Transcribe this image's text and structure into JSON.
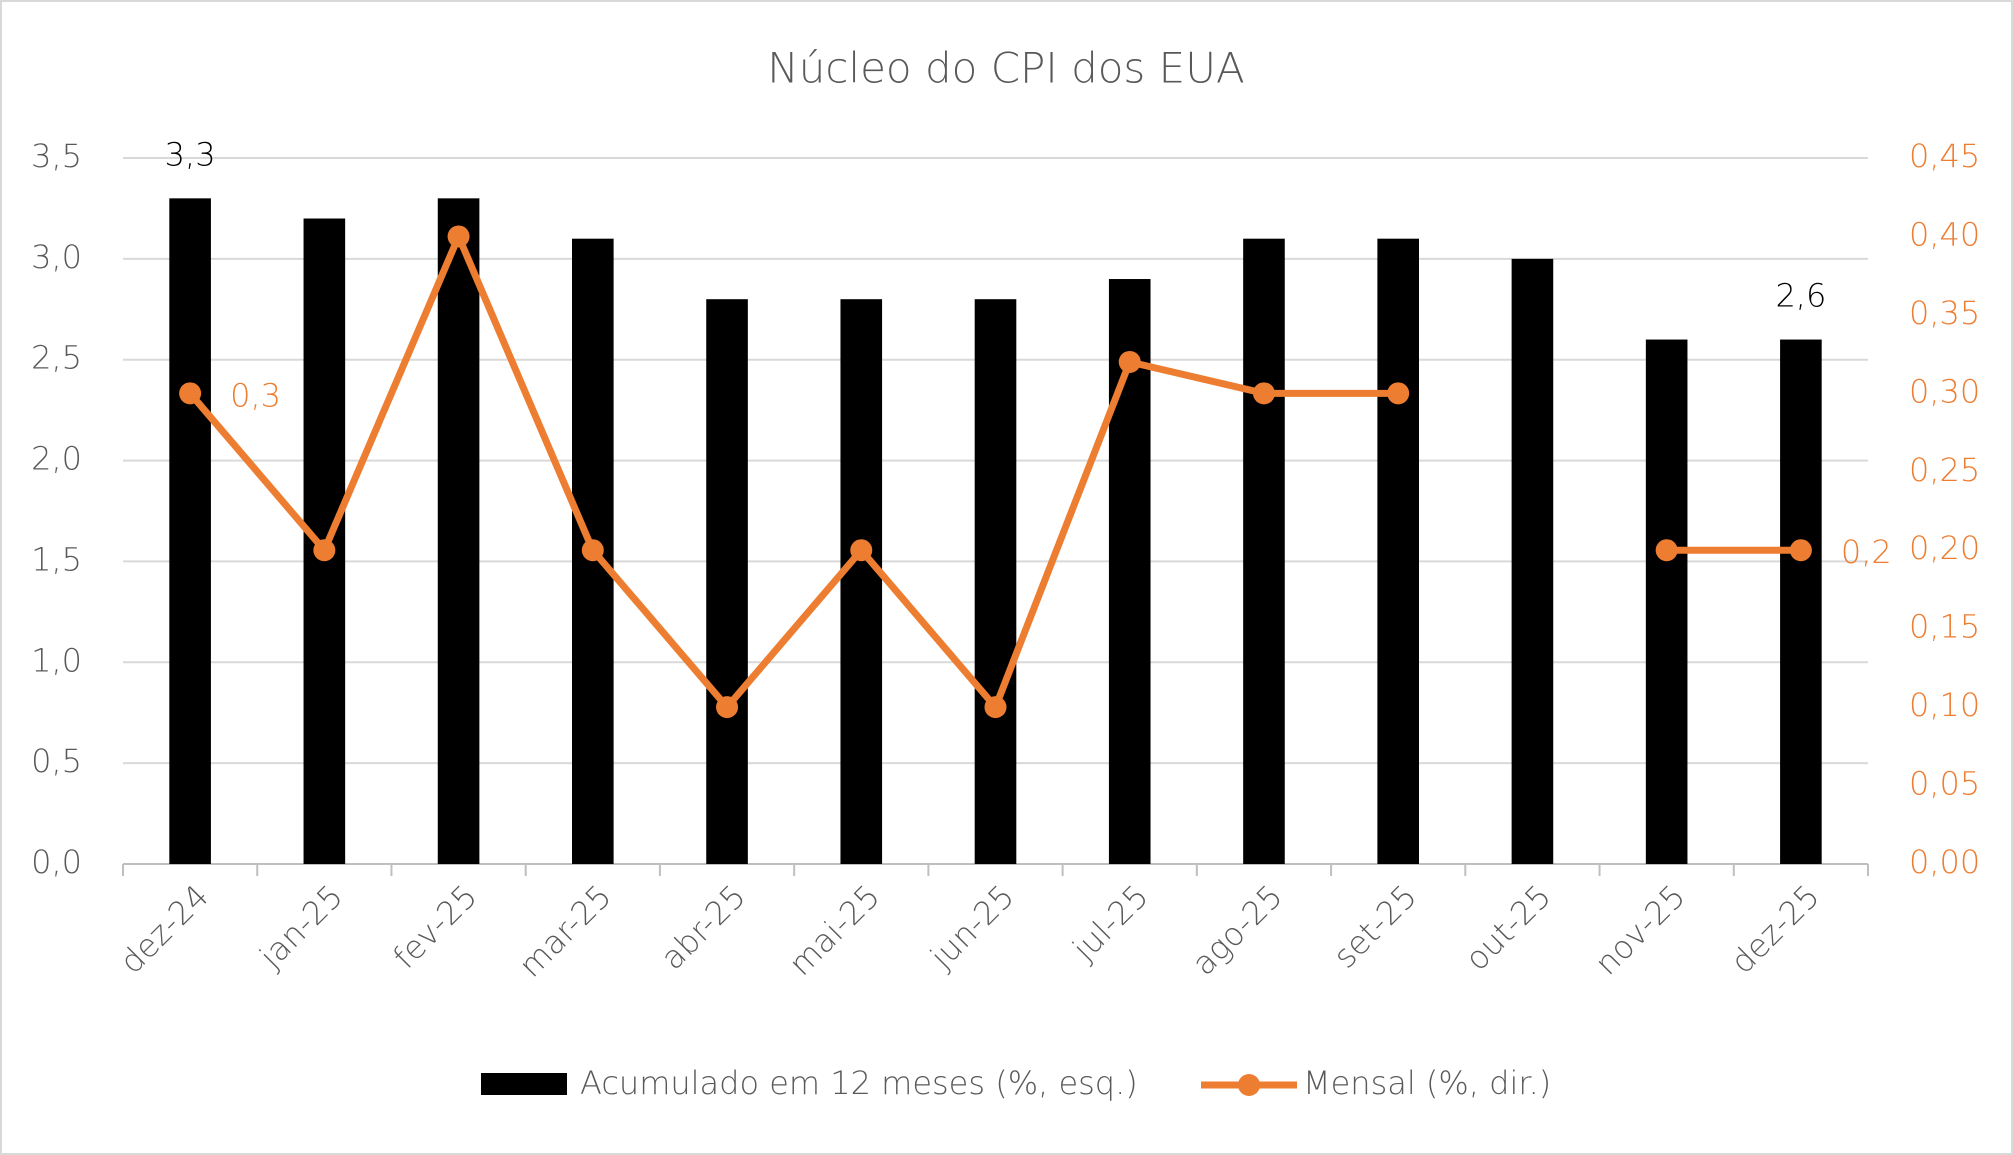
{
  "chart_data": {
    "type": "bar",
    "title": "Núcleo do CPI dos EUA",
    "categories": [
      "dez-24",
      "jan-25",
      "fev-25",
      "mar-25",
      "abr-25",
      "mai-25",
      "jun-25",
      "jul-25",
      "ago-25",
      "set-25",
      "out-25",
      "nov-25",
      "dez-25"
    ],
    "series": [
      {
        "name": "Acumulado em 12 meses (%, esq.)",
        "type": "bar",
        "color": "#000000",
        "values": [
          3.3,
          3.2,
          3.3,
          3.1,
          2.8,
          2.8,
          2.8,
          2.9,
          3.1,
          3.1,
          3.0,
          2.6,
          2.6
        ],
        "value_labels": [
          "3,3",
          null,
          null,
          null,
          null,
          null,
          null,
          null,
          null,
          null,
          null,
          null,
          "2,6"
        ]
      },
      {
        "name": "Mensal (%, dir.)",
        "type": "line",
        "axis": "y2",
        "color": "#ed7d31",
        "values": [
          0.3,
          0.2,
          0.4,
          0.2,
          0.1,
          0.2,
          0.1,
          0.32,
          0.3,
          0.3,
          null,
          0.2,
          0.2
        ],
        "value_labels": [
          "0,3",
          null,
          null,
          null,
          null,
          null,
          null,
          null,
          null,
          null,
          null,
          null,
          "0,2"
        ]
      }
    ],
    "ylim": [
      0,
      3.5
    ],
    "yticks": [
      {
        "value": 0,
        "label": "0,0"
      },
      {
        "value": 0.5,
        "label": "0,5"
      },
      {
        "value": 1,
        "label": "1,0"
      },
      {
        "value": 1.5,
        "label": "1,5"
      },
      {
        "value": 2,
        "label": "2,0"
      },
      {
        "value": 2.5,
        "label": "2,5"
      },
      {
        "value": 3,
        "label": "3,0"
      },
      {
        "value": 3.5,
        "label": "3,5"
      }
    ],
    "y2lim": [
      0,
      0.45
    ],
    "y2ticks": [
      {
        "value": 0,
        "label": "0,00"
      },
      {
        "value": 0.05,
        "label": "0,05"
      },
      {
        "value": 0.1,
        "label": "0,10"
      },
      {
        "value": 0.15,
        "label": "0,15"
      },
      {
        "value": 0.2,
        "label": "0,20"
      },
      {
        "value": 0.25,
        "label": "0,25"
      },
      {
        "value": 0.3,
        "label": "0,30"
      },
      {
        "value": 0.35,
        "label": "0,35"
      },
      {
        "value": 0.4,
        "label": "0,40"
      },
      {
        "value": 0.45,
        "label": "0,45"
      }
    ],
    "grid": true,
    "legend": "bottom"
  }
}
